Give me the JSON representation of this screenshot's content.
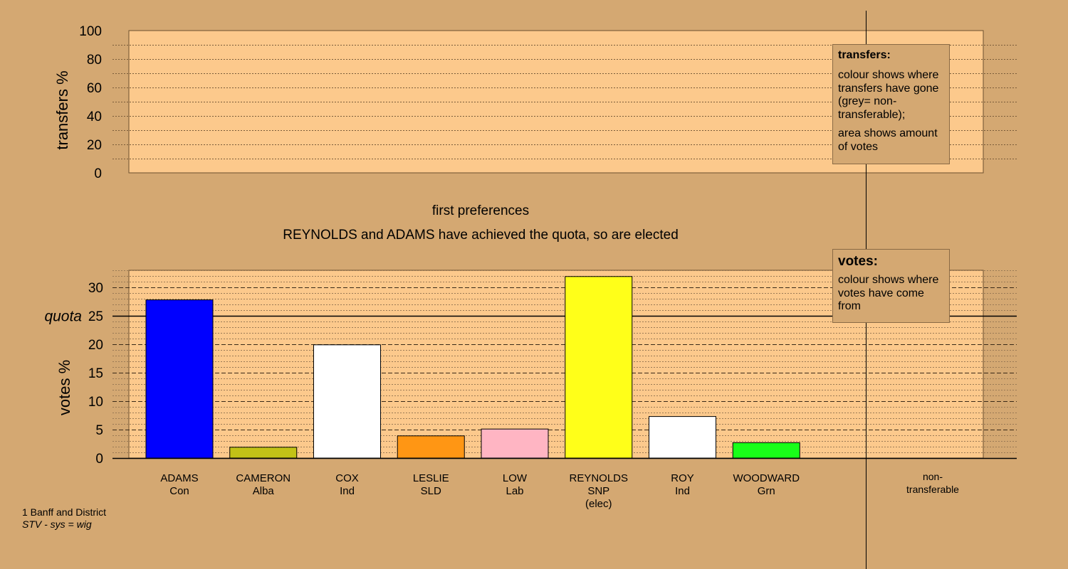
{
  "chart_data": {
    "type": "bar",
    "title": "first preferences",
    "subtitle": "REYNOLDS and ADAMS have achieved the quota, so are elected",
    "top_panel": {
      "ylabel": "transfers %",
      "ylim": [
        0,
        100
      ],
      "ticks": [
        "0",
        "20",
        "40",
        "60",
        "80",
        "100"
      ]
    },
    "bottom_panel": {
      "ylabel": "votes %",
      "ylim": [
        0,
        33
      ],
      "ticks": [
        "0",
        "5",
        "10",
        "15",
        "20",
        "25",
        "30"
      ],
      "quota": 25,
      "quota_label": "quota"
    },
    "candidates": [
      {
        "name": "ADAMS",
        "party": "Con",
        "note": "",
        "value": 27.8,
        "color": "#0000ff"
      },
      {
        "name": "CAMERON",
        "party": "Alba",
        "note": "",
        "value": 1.9,
        "color": "#c2c217"
      },
      {
        "name": "COX",
        "party": "Ind",
        "note": "",
        "value": 19.9,
        "color": "#ffffff"
      },
      {
        "name": "LESLIE",
        "party": "SLD",
        "note": "",
        "value": 3.9,
        "color": "#ff9614"
      },
      {
        "name": "LOW",
        "party": "Lab",
        "note": "",
        "value": 5.1,
        "color": "#ffb5c3"
      },
      {
        "name": "REYNOLDS",
        "party": "SNP",
        "note": "(elec)",
        "value": 31.9,
        "color": "#ffff19"
      },
      {
        "name": "ROY",
        "party": "Ind",
        "note": "",
        "value": 7.3,
        "color": "#ffffff"
      },
      {
        "name": "WOODWARD",
        "party": "Grn",
        "note": "",
        "value": 2.7,
        "color": "#19ff19"
      }
    ],
    "nontransferable_label": [
      "non-",
      "transferable"
    ],
    "grid": true
  },
  "legend_transfers": {
    "title": "transfers:",
    "line1": "colour shows where transfers have gone (grey= non-transferable);",
    "line2": "area shows amount of votes"
  },
  "legend_votes": {
    "title": "votes:",
    "line1": "colour shows where votes have come from"
  },
  "footer": {
    "line1": "1 Banff and District",
    "line2": "STV - sys = wig"
  },
  "colors": {
    "background": "#d4a872",
    "plot_area": "#fcc98c"
  }
}
